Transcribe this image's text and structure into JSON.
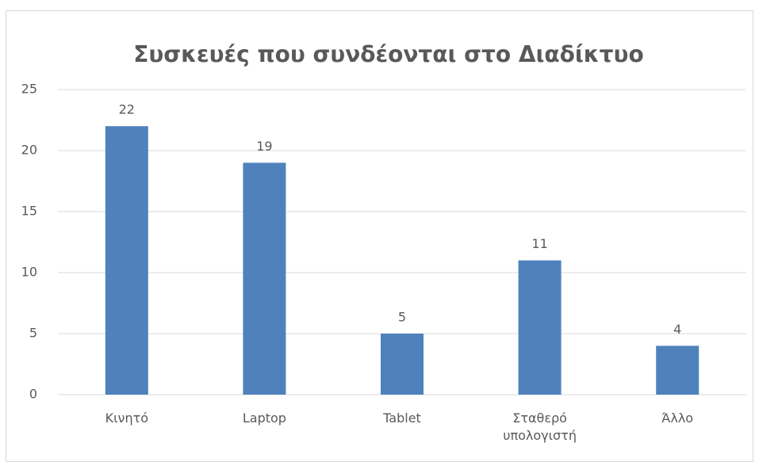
{
  "chart_data": {
    "type": "bar",
    "title": "Συσκευές που συνδέονται στο Διαδίκτυο",
    "categories": [
      "Κινητό",
      "Laptop",
      "Tablet",
      "Σταθερό υπολογιστή",
      "Άλλο"
    ],
    "values": [
      22,
      19,
      5,
      11,
      4
    ],
    "color": "#4f81bd",
    "ylim": [
      0,
      25
    ],
    "yticks": [
      0,
      5,
      10,
      15,
      20,
      25
    ],
    "grid": true
  }
}
